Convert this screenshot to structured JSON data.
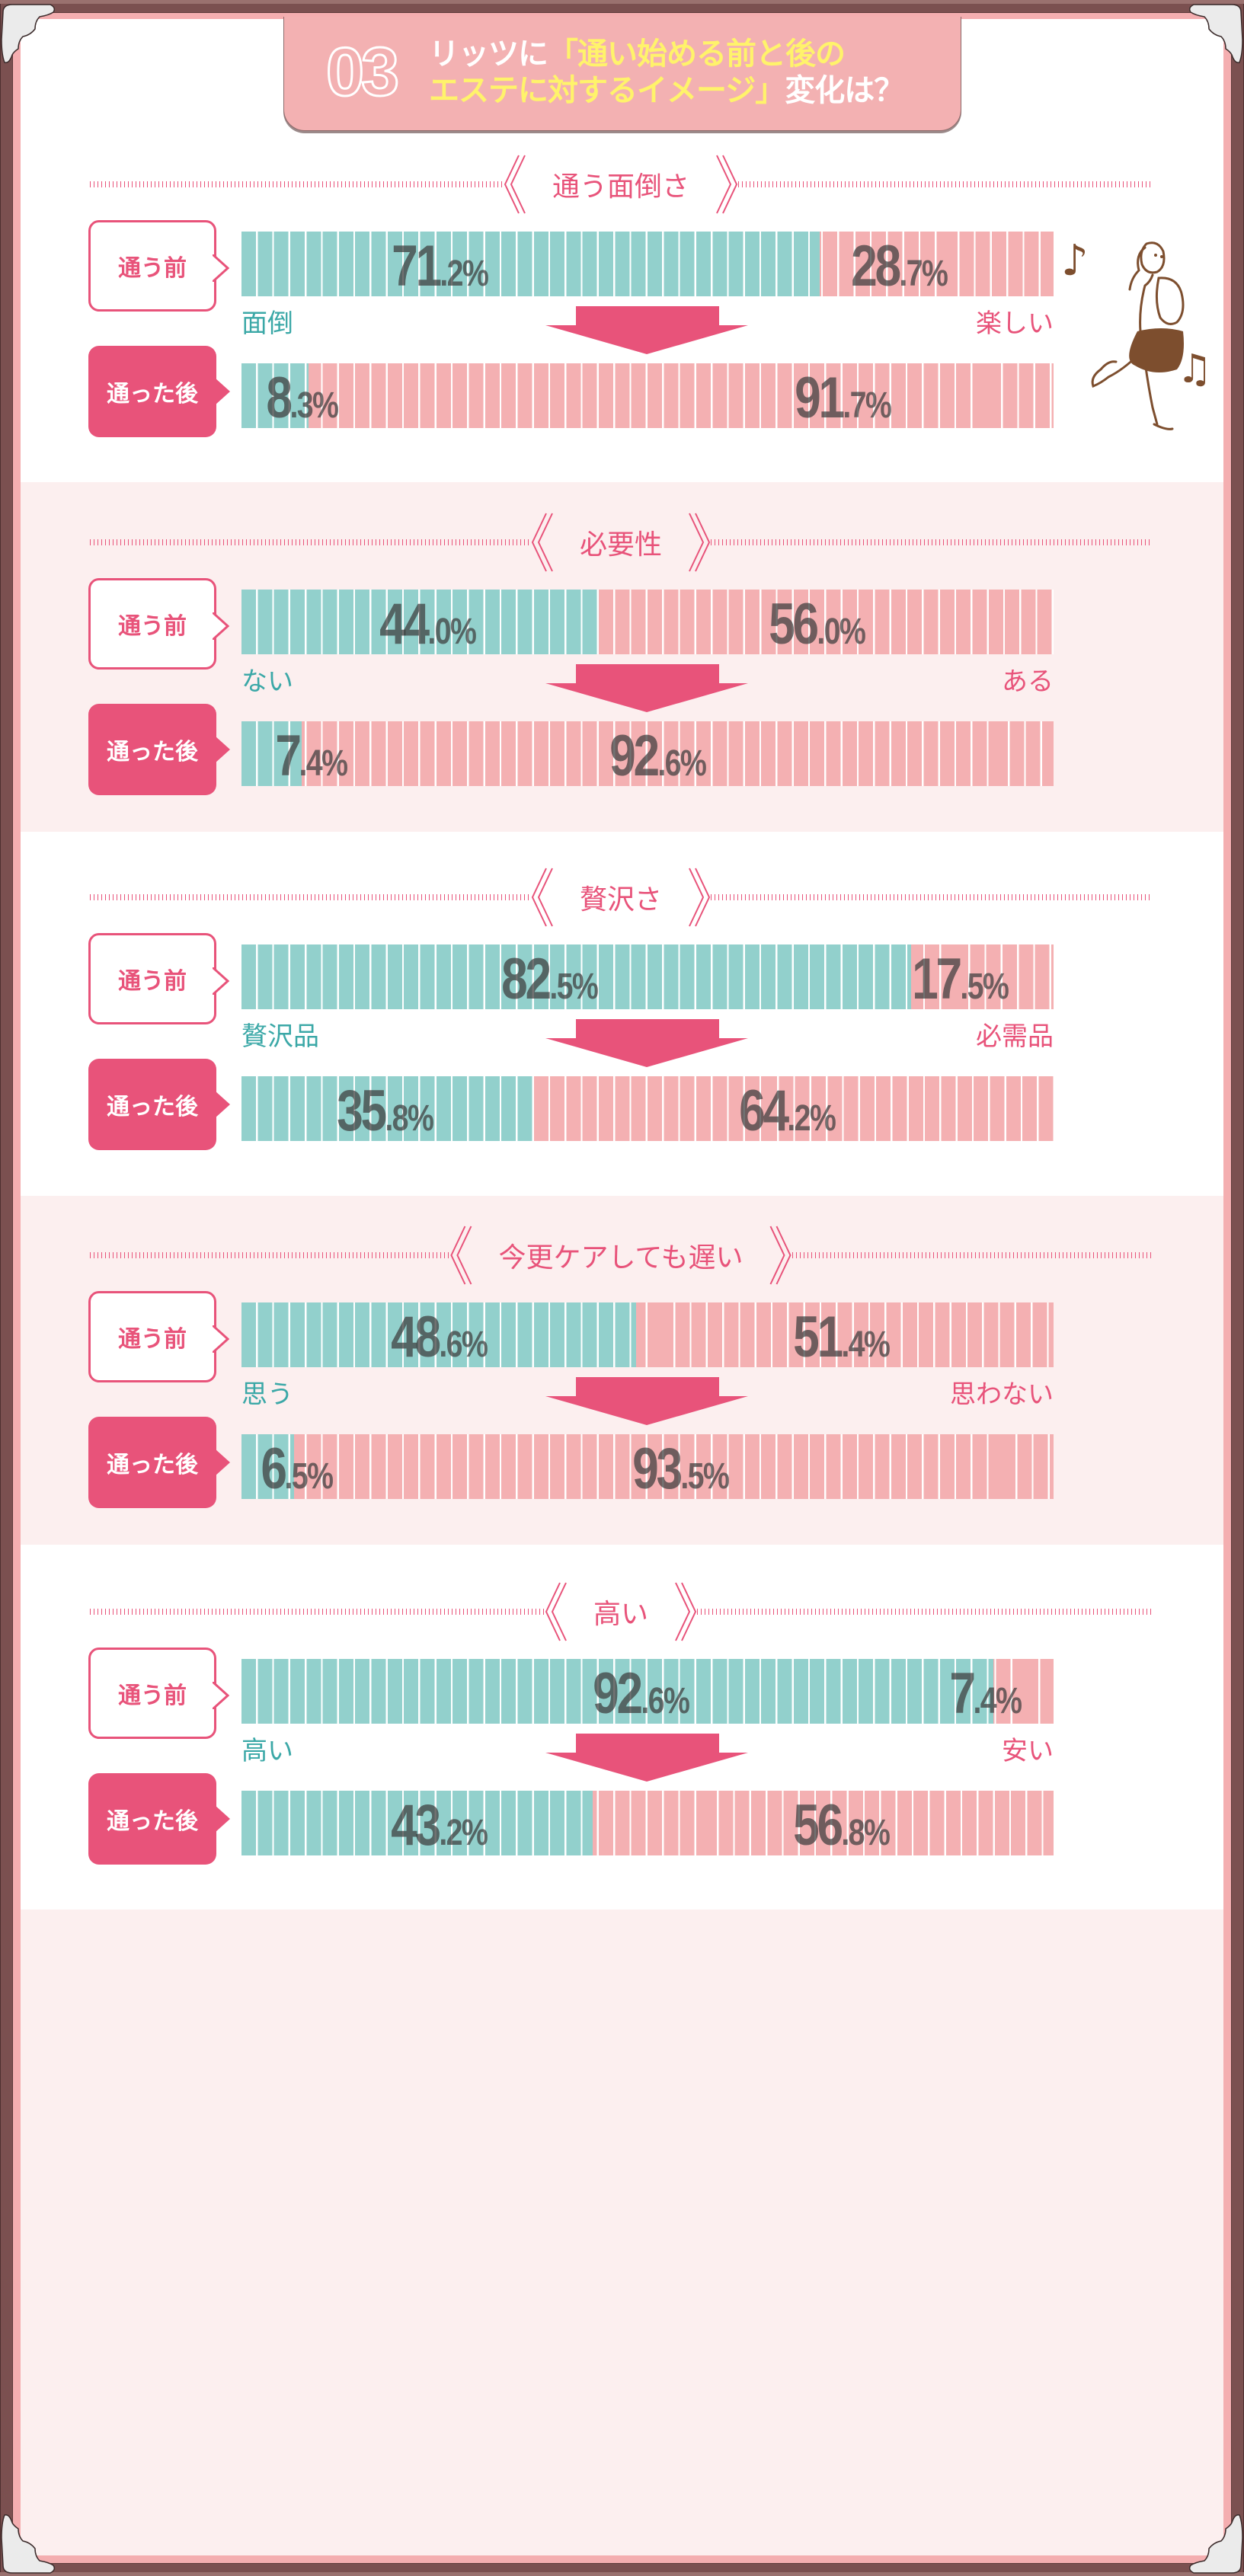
{
  "title": {
    "number": "03",
    "line1_prefix": "リッツに",
    "line1_highlight": "「通い始める前と後の",
    "line2_highlight": "エステに対するイメージ」",
    "line2_suffix": "変化は？"
  },
  "labels": {
    "before": "通う前",
    "after": "通った後"
  },
  "colors": {
    "teal": "#92d0cc",
    "pink": "#f4b0b2",
    "accent": "#e8537a",
    "teal_text": "#3ba8a7",
    "highlight_yellow": "#fff36b",
    "banner": "#f3b1b2",
    "frame_brown": "#7b5050"
  },
  "sections": [
    {
      "heading": "通う面倒さ",
      "left_label": "面倒",
      "right_label": "楽しい",
      "before": {
        "left": {
          "int": "71",
          "dec": ".2%"
        },
        "right": {
          "int": "28",
          "dec": ".7%"
        }
      },
      "after": {
        "left": {
          "int": "8",
          "dec": ".3%"
        },
        "right": {
          "int": "91",
          "dec": ".7%"
        }
      }
    },
    {
      "heading": "必要性",
      "left_label": "ない",
      "right_label": "ある",
      "before": {
        "left": {
          "int": "44",
          "dec": ".0%"
        },
        "right": {
          "int": "56",
          "dec": ".0%"
        }
      },
      "after": {
        "left": {
          "int": "7",
          "dec": ".4%"
        },
        "right": {
          "int": "92",
          "dec": ".6%"
        }
      }
    },
    {
      "heading": "贅沢さ",
      "left_label": "贅沢品",
      "right_label": "必需品",
      "before": {
        "left": {
          "int": "82",
          "dec": ".5%"
        },
        "right": {
          "int": "17",
          "dec": ".5%"
        }
      },
      "after": {
        "left": {
          "int": "35",
          "dec": ".8%"
        },
        "right": {
          "int": "64",
          "dec": ".2%"
        }
      }
    },
    {
      "heading": "今更ケアしても遅い",
      "left_label": "思う",
      "right_label": "思わない",
      "before": {
        "left": {
          "int": "48",
          "dec": ".6%"
        },
        "right": {
          "int": "51",
          "dec": ".4%"
        }
      },
      "after": {
        "left": {
          "int": "6",
          "dec": ".5%"
        },
        "right": {
          "int": "93",
          "dec": ".5%"
        }
      }
    },
    {
      "heading": "高い",
      "left_label": "高い",
      "right_label": "安い",
      "before": {
        "left": {
          "int": "92",
          "dec": ".6%"
        },
        "right": {
          "int": "7",
          "dec": ".4%"
        }
      },
      "after": {
        "left": {
          "int": "43",
          "dec": ".2%"
        },
        "right": {
          "int": "56",
          "dec": ".8%"
        }
      }
    }
  ],
  "chart_data": {
    "type": "bar",
    "subtype": "stacked-horizontal-100",
    "title": "03 リッツに「通い始める前と後のエステに対するイメージ」変化は？",
    "categories": [
      "通う面倒さ",
      "必要性",
      "贅沢さ",
      "今更ケアしても遅い",
      "高い"
    ],
    "left_labels": [
      "面倒",
      "ない",
      "贅沢品",
      "思う",
      "高い"
    ],
    "right_labels": [
      "楽しい",
      "ある",
      "必需品",
      "思わない",
      "安い"
    ],
    "series": [
      {
        "name": "通う前 (left)",
        "values": [
          71.2,
          44.0,
          82.5,
          48.6,
          92.6
        ]
      },
      {
        "name": "通う前 (right)",
        "values": [
          28.7,
          56.0,
          17.5,
          51.4,
          7.4
        ]
      },
      {
        "name": "通った後 (left)",
        "values": [
          8.3,
          7.4,
          35.8,
          6.5,
          43.2
        ]
      },
      {
        "name": "通った後 (right)",
        "values": [
          91.7,
          92.6,
          64.2,
          93.5,
          56.8
        ]
      }
    ],
    "unit": "%",
    "xlim": [
      0,
      100
    ],
    "grid": false,
    "legend": "none"
  }
}
